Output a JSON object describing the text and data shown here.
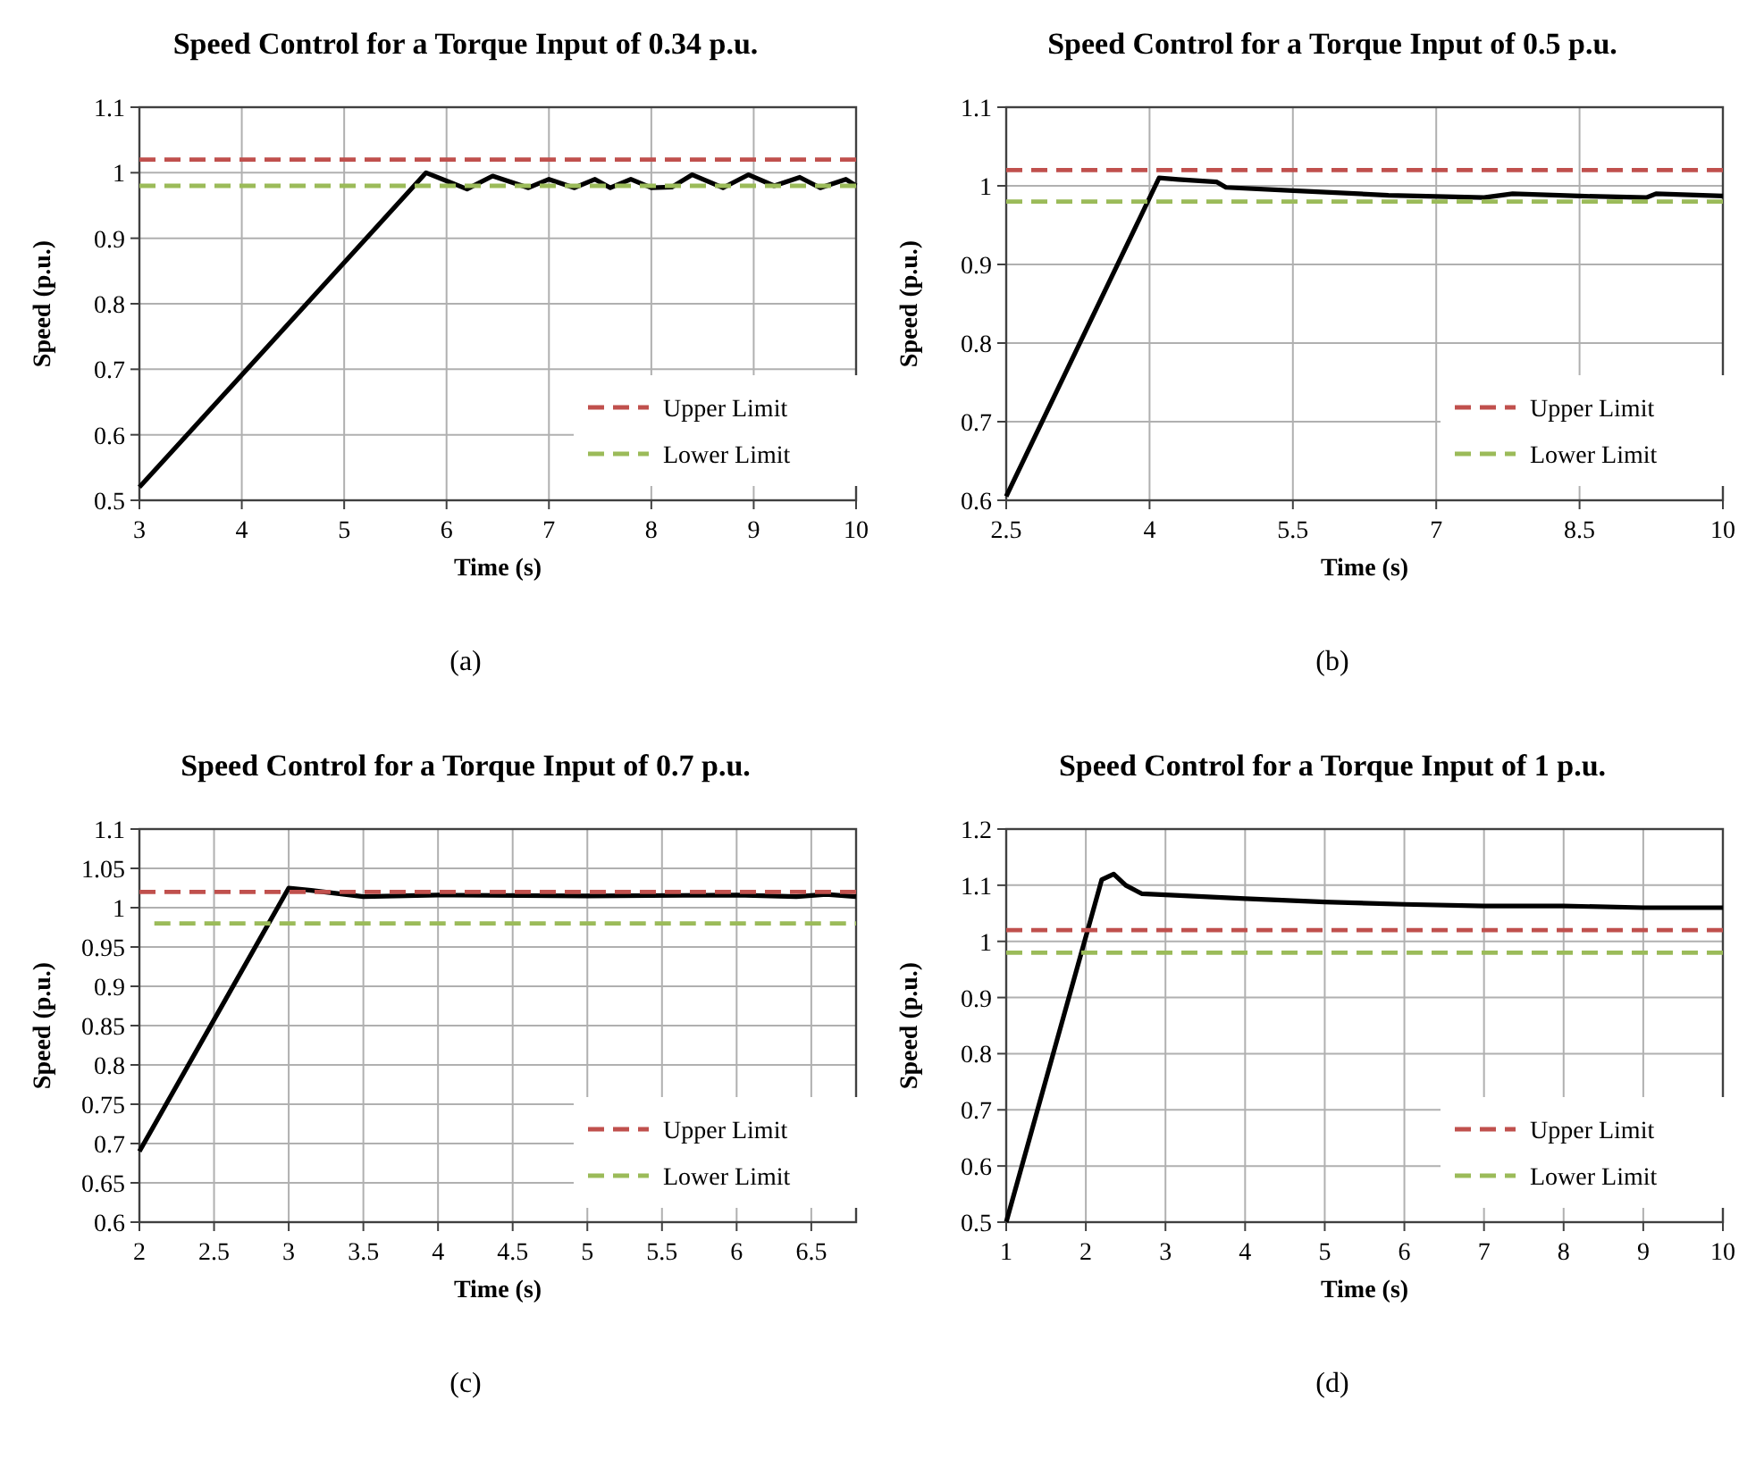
{
  "chart_data": [
    {
      "type": "line",
      "title": "Speed Control for a Torque Input of 0.34 p.u.",
      "xlabel": "Time (s)",
      "ylabel": "Speed (p.u.)",
      "annotations": [
        "(a)"
      ],
      "xlim": [
        3,
        10
      ],
      "xticks": [
        3,
        4,
        5,
        6,
        7,
        8,
        9,
        10
      ],
      "ylim": [
        0.5,
        1.1
      ],
      "yticks": [
        0.5,
        0.6,
        0.7,
        0.8,
        0.9,
        1,
        1.1
      ],
      "grid": true,
      "legend": "bottom right",
      "series": [
        {
          "color": "#000000",
          "line_style": "solid",
          "x": [
            3,
            5.8,
            6.2,
            6.45,
            6.8,
            7.0,
            7.25,
            7.45,
            7.6,
            7.8,
            8.0,
            8.2,
            8.4,
            8.7,
            8.95,
            9.2,
            9.45,
            9.65,
            9.9,
            10
          ],
          "values": [
            0.52,
            1.0,
            0.975,
            0.995,
            0.977,
            0.99,
            0.977,
            0.99,
            0.977,
            0.99,
            0.977,
            0.978,
            0.997,
            0.977,
            0.997,
            0.98,
            0.993,
            0.977,
            0.99,
            0.98
          ]
        },
        {
          "name": "Upper Limit",
          "color": "#c0504d",
          "line_style": "dashed",
          "x": [
            3,
            10
          ],
          "values": [
            1.02,
            1.02
          ]
        },
        {
          "name": "Lower Limit",
          "color": "#9bbb59",
          "line_style": "dashed",
          "x": [
            3,
            10
          ],
          "values": [
            0.98,
            0.98
          ]
        }
      ]
    },
    {
      "type": "line",
      "title": "Speed Control for a Torque Input of 0.5 p.u.",
      "xlabel": "Time (s)",
      "ylabel": "Speed (p.u.)",
      "annotations": [
        "(b)"
      ],
      "xlim": [
        2.5,
        10
      ],
      "xticks": [
        2.5,
        4,
        5.5,
        7,
        8.5,
        10
      ],
      "ylim": [
        0.6,
        1.1
      ],
      "yticks": [
        0.6,
        0.7,
        0.8,
        0.9,
        1,
        1.1
      ],
      "grid": true,
      "legend": "bottom right",
      "series": [
        {
          "color": "#000000",
          "line_style": "solid",
          "x": [
            2.5,
            4.1,
            4.3,
            4.7,
            4.8,
            5.5,
            6.5,
            7.5,
            7.8,
            8.5,
            9.2,
            9.3,
            10
          ],
          "values": [
            0.605,
            1.01,
            1.008,
            1.005,
            0.998,
            0.994,
            0.988,
            0.985,
            0.99,
            0.987,
            0.985,
            0.99,
            0.987
          ]
        },
        {
          "name": "Upper Limit",
          "color": "#c0504d",
          "line_style": "dashed",
          "x": [
            2.5,
            10
          ],
          "values": [
            1.02,
            1.02
          ]
        },
        {
          "name": "Lower Limit",
          "color": "#9bbb59",
          "line_style": "dashed",
          "x": [
            2.5,
            10
          ],
          "values": [
            0.98,
            0.98
          ]
        }
      ]
    },
    {
      "type": "line",
      "title": "Speed Control for a Torque Input of 0.7 p.u.",
      "xlabel": "Time (s)",
      "ylabel": "Speed (p.u.)",
      "annotations": [
        "(c)"
      ],
      "xlim": [
        2,
        6.8
      ],
      "xticks": [
        2,
        2.5,
        3,
        3.5,
        4,
        4.5,
        5,
        5.5,
        6,
        6.5
      ],
      "ylim": [
        0.6,
        1.1
      ],
      "yticks": [
        0.6,
        0.65,
        0.7,
        0.75,
        0.8,
        0.85,
        0.9,
        0.95,
        1,
        1.05,
        1.1
      ],
      "grid": true,
      "legend": "bottom right",
      "series": [
        {
          "color": "#000000",
          "line_style": "solid",
          "x": [
            2,
            3.0,
            3.15,
            3.5,
            4,
            5,
            6,
            6.4,
            6.6,
            6.8
          ],
          "values": [
            0.69,
            1.025,
            1.022,
            1.014,
            1.016,
            1.015,
            1.016,
            1.014,
            1.017,
            1.014
          ]
        },
        {
          "name": "Upper Limit",
          "color": "#c0504d",
          "line_style": "dashed",
          "x": [
            2,
            6.8
          ],
          "values": [
            1.02,
            1.02
          ]
        },
        {
          "name": "Lower Limit",
          "color": "#9bbb59",
          "line_style": "dashed",
          "x": [
            2.1,
            6.8
          ],
          "values": [
            0.98,
            0.98
          ]
        }
      ]
    },
    {
      "type": "line",
      "title": "Speed Control for a Torque Input of 1 p.u.",
      "xlabel": "Time (s)",
      "ylabel": "Speed (p.u.)",
      "annotations": [
        "(d)"
      ],
      "xlim": [
        1,
        10
      ],
      "xticks": [
        1,
        2,
        3,
        4,
        5,
        6,
        7,
        8,
        9,
        10
      ],
      "ylim": [
        0.5,
        1.2
      ],
      "yticks": [
        0.5,
        0.6,
        0.7,
        0.8,
        0.9,
        1,
        1.1,
        1.2
      ],
      "grid": true,
      "legend": "bottom right",
      "series": [
        {
          "color": "#000000",
          "line_style": "solid",
          "x": [
            1,
            2.2,
            2.35,
            2.5,
            2.7,
            3,
            4,
            5,
            6,
            7,
            8,
            9,
            10
          ],
          "values": [
            0.5,
            1.11,
            1.12,
            1.1,
            1.085,
            1.083,
            1.076,
            1.07,
            1.066,
            1.063,
            1.063,
            1.06,
            1.06
          ]
        },
        {
          "name": "Upper Limit",
          "color": "#c0504d",
          "line_style": "dashed",
          "x": [
            1,
            10
          ],
          "values": [
            1.02,
            1.02
          ]
        },
        {
          "name": "Lower Limit",
          "color": "#9bbb59",
          "line_style": "dashed",
          "x": [
            1,
            10
          ],
          "values": [
            0.98,
            0.98
          ]
        }
      ]
    }
  ]
}
